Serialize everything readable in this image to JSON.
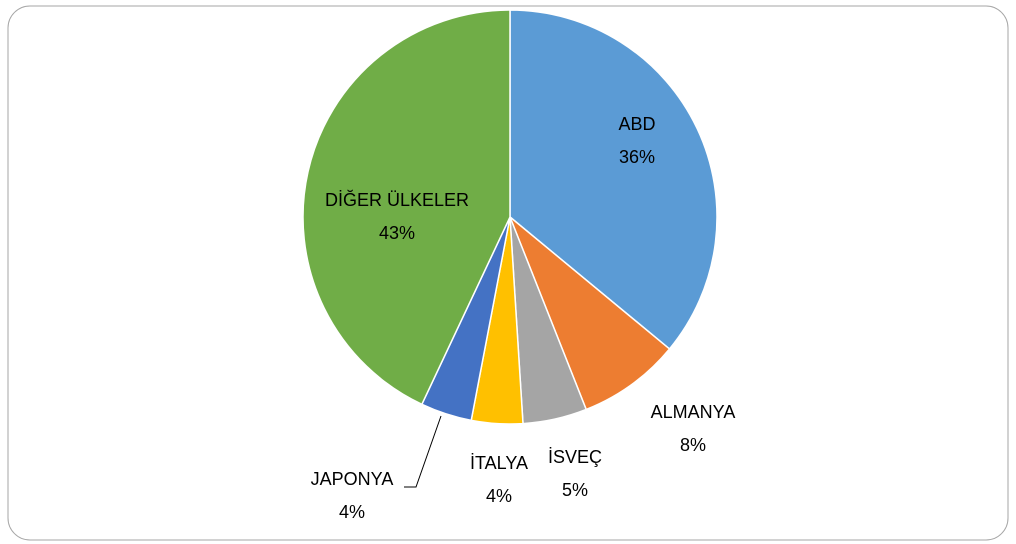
{
  "chart_data": {
    "type": "pie",
    "categories": [
      "ABD",
      "ALMANYA",
      "İSVEÇ",
      "İTALYA",
      "JAPONYA",
      "DİĞER ÜLKELER"
    ],
    "values": [
      36,
      8,
      5,
      4,
      4,
      43
    ],
    "value_labels": [
      "36%",
      "8%",
      "5%",
      "4%",
      "4%",
      "43%"
    ],
    "colors": [
      "#5b9bd5",
      "#ed7d31",
      "#a5a5a5",
      "#ffc000",
      "#4472c4",
      "#70ad47"
    ]
  }
}
